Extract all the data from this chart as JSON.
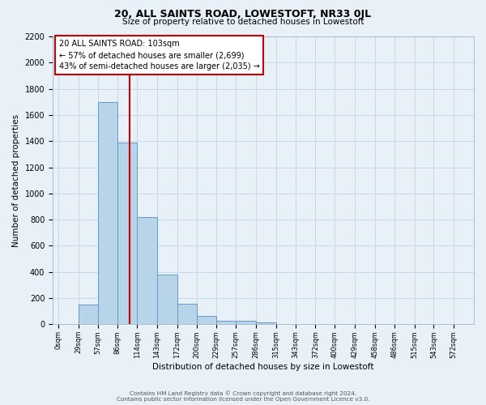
{
  "title": "20, ALL SAINTS ROAD, LOWESTOFT, NR33 0JL",
  "subtitle": "Size of property relative to detached houses in Lowestoft",
  "xlabel": "Distribution of detached houses by size in Lowestoft",
  "ylabel": "Number of detached properties",
  "bin_labels": [
    "0sqm",
    "29sqm",
    "57sqm",
    "86sqm",
    "114sqm",
    "143sqm",
    "172sqm",
    "200sqm",
    "229sqm",
    "257sqm",
    "286sqm",
    "315sqm",
    "343sqm",
    "372sqm",
    "400sqm",
    "429sqm",
    "458sqm",
    "486sqm",
    "515sqm",
    "543sqm",
    "572sqm"
  ],
  "bar_heights": [
    5,
    150,
    1700,
    1390,
    820,
    380,
    160,
    65,
    25,
    30,
    15,
    5,
    5,
    0,
    0,
    0,
    5,
    0,
    5,
    0,
    0
  ],
  "bar_color": "#b8d4e8",
  "bar_edge_color": "#6699cc",
  "property_line_x": 103,
  "property_line_color": "#cc0000",
  "annotation_title": "20 ALL SAINTS ROAD: 103sqm",
  "annotation_line1": "← 57% of detached houses are smaller (2,699)",
  "annotation_line2": "43% of semi-detached houses are larger (2,035) →",
  "annotation_box_color": "#ffffff",
  "annotation_box_edge": "#cc0000",
  "grid_color": "#c8d8e8",
  "background_color": "#e8f0f8",
  "footer1": "Contains HM Land Registry data © Crown copyright and database right 2024.",
  "footer2": "Contains public sector information licensed under the Open Government Licence v3.0.",
  "ylim": [
    0,
    2200
  ],
  "yticks": [
    0,
    200,
    400,
    600,
    800,
    1000,
    1200,
    1400,
    1600,
    1800,
    2000,
    2200
  ]
}
